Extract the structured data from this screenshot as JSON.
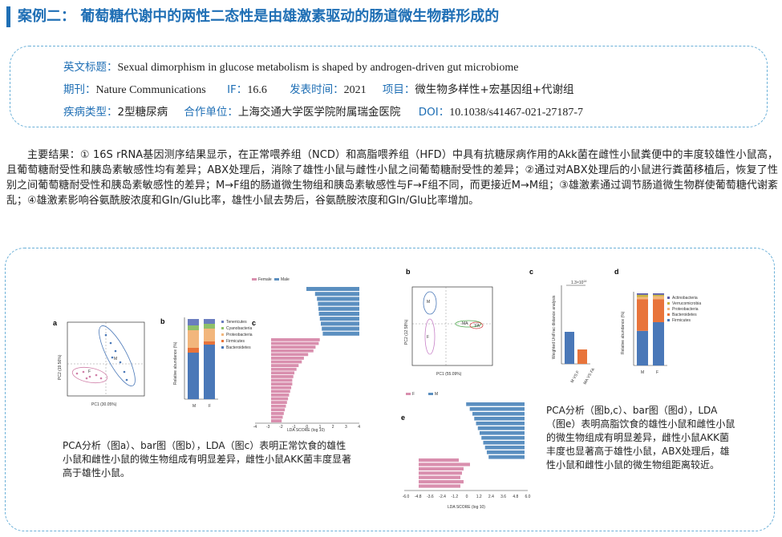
{
  "header": {
    "title": "案例二： 葡萄糖代谢中的两性二态性是由雄激素驱动的肠道微生物群形成的"
  },
  "info": {
    "en_title_label": "英文标题：",
    "en_title": "Sexual dimorphism in glucose metabolism is shaped by androgen-driven gut microbiome",
    "journal_label": "期刊：",
    "journal": "Nature Communications",
    "if_label": "IF：",
    "if_value": "16.6",
    "pub_label": "发表时间：",
    "pub_value": "2021",
    "project_label": "项目：",
    "project_value": "微生物多样性+宏基因组+代谢组",
    "disease_label": "疾病类型：",
    "disease_value": "2型糖尿病",
    "partner_label": "合作单位：",
    "partner_value": "上海交通大学医学院附属瑞金医院",
    "doi_label": "DOI：",
    "doi_value": "10.1038/s41467-021-27187-7"
  },
  "results": {
    "text": "主要结果：① 16S rRNA基因测序结果显示，在正常喂养组（NCD）和高脂喂养组（HFD）中具有抗糖尿病作用的Akk菌在雌性小鼠粪便中的丰度较雄性小鼠高，且葡萄糖耐受性和胰岛素敏感性均有差异；ABX处理后，消除了雄性小鼠与雌性小鼠之间葡萄糖耐受性的差异；②通过对ABX处理后的小鼠进行粪菌移植后，恢复了性别之间葡萄糖耐受性和胰岛素敏感性的差异；M→F组的肠道微生物组和胰岛素敏感性与F→F组不同，而更接近M→M组；③雄激素通过调节肠道微生物群使葡萄糖代谢紊乱；④雄激素影响谷氨酰胺浓度和Gln/Glu比率，雄性小鼠去势后，谷氨酰胺浓度和Gln/Glu比率增加。"
  },
  "figure_left": {
    "panel_a": "a",
    "panel_b": "b",
    "panel_c": "c",
    "pca_xlabel": "PC1 (30.05%)",
    "pca_ylabel": "PC2 (19.56%)",
    "group_m": "M",
    "group_f": "F",
    "bar_ylabel": "Relative abundance (%)",
    "legend": [
      "Tenericutes",
      "Cyanobacteria",
      "Proteobacteria",
      "Firmicutes",
      "Bacteroidetes"
    ],
    "lda_legend_female": "Female",
    "lda_legend_male": "Male",
    "lda_xlabel": "LDA SCORE (log 10)",
    "lda_ticks": [
      "-4",
      "-3",
      "-2",
      "-1",
      "0",
      "1",
      "2",
      "3",
      "4"
    ],
    "caption": "PCA分析（图a）、bar图（图b），LDA（图c）表明正常饮食的雄性小鼠和雌性小鼠的微生物组成有明显差异，雌性小鼠AKK菌丰度显著高于雄性小鼠。"
  },
  "figure_right": {
    "panel_b": "b",
    "panel_c": "c",
    "panel_d": "d",
    "panel_e": "e",
    "pca_xlabel": "PC1 (55.09%)",
    "pca_ylabel": "PC2 (12.58%)",
    "groups": [
      "M",
      "F",
      "MA",
      "FA"
    ],
    "pval": "1.3×10",
    "pval_exp": "14",
    "unifrac_ylabel": "Weighted UniFrac distance analysis",
    "unifrac_x": [
      "M VS F",
      "MA VS FA"
    ],
    "bar_ylabel": "Relative abundance (%)",
    "legend": [
      "Actinobacteria",
      "Verrucomicrobia",
      "Proteobacteria",
      "Bacteroidetes",
      "Firmicutes"
    ],
    "lda_legend_f": "F",
    "lda_legend_m": "M",
    "lda_xlabel": "LDA SCORE (log 10)",
    "lda_ticks": [
      "-6.0",
      "-4.8",
      "-3.6",
      "-2.4",
      "-1.2",
      "0",
      "1.2",
      "2.4",
      "3.6",
      "4.8",
      "6.0"
    ],
    "caption": "PCA分析（图b,c）、bar图（图d），LDA（图e）表明高脂饮食的雄性小鼠和雌性小鼠的微生物组成有明显差异，雌性小鼠AKK菌丰度也显著高于雄性小鼠，ABX处理后，雄性小鼠和雌性小鼠的微生物组距离较近。"
  },
  "colors": {
    "accent": "#1f6fb5",
    "bacteroidetes": "#4a78b8",
    "firmicutes": "#e8743b",
    "proteobacteria": "#f2b67c",
    "lda_blue": "#5b8fc0",
    "lda_pink": "#d98fae"
  }
}
